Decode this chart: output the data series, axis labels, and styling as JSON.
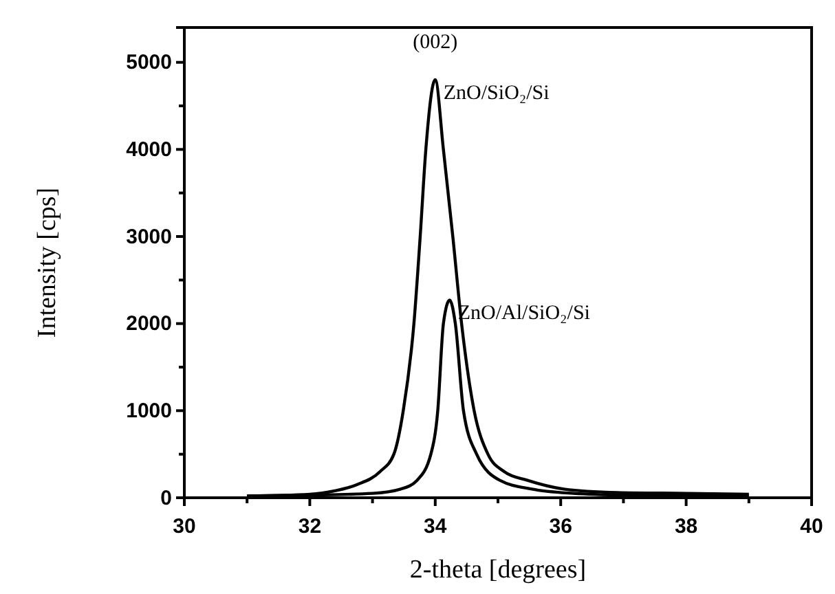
{
  "chart_data": {
    "type": "line",
    "xlabel": "2-theta [degrees]",
    "ylabel": "Intensity [cps]",
    "xlim": [
      30,
      40
    ],
    "xticks": [
      30,
      {
        "value": 31,
        "label": null
      },
      32,
      {
        "value": 33,
        "label": null
      },
      34,
      {
        "value": 35,
        "label": null
      },
      36,
      {
        "value": 37,
        "label": null
      },
      38,
      {
        "value": 39,
        "label": null
      },
      40
    ],
    "ylim": [
      0,
      5400
    ],
    "yticks": [
      0,
      {
        "value": 500,
        "label": null
      },
      1000,
      {
        "value": 1500,
        "label": null
      },
      2000,
      {
        "value": 2500,
        "label": null
      },
      3000,
      {
        "value": 3500,
        "label": null
      },
      4000,
      {
        "value": 4500,
        "label": null
      },
      5000
    ],
    "grid": false,
    "legend": false,
    "marker": "none",
    "line_style": "solid",
    "annotations": [
      "(002)"
    ],
    "series": [
      {
        "name": "ZnO/SiO₂/Si",
        "color": "#000000",
        "x": [
          31,
          32,
          32.4,
          32.75,
          33.12,
          33.34,
          33.49,
          33.66,
          33.76,
          33.85,
          34,
          34.13,
          34.28,
          34.42,
          34.62,
          34.84,
          35.1,
          35.47,
          36.05,
          36.9,
          38,
          39
        ],
        "values": [
          20,
          40,
          80,
          150,
          300,
          500,
          1000,
          2000,
          3000,
          4000,
          4800,
          4000,
          3000,
          2000,
          1000,
          500,
          300,
          200,
          100,
          60,
          50,
          40
        ]
      },
      {
        "name": "ZnO/Al/SiO₂/Si",
        "color": "#000000",
        "x": [
          31,
          32,
          33,
          33.45,
          33.71,
          33.93,
          34.04,
          34.13,
          34.23,
          34.32,
          34.45,
          34.66,
          35.03,
          35.54,
          36.2,
          37,
          39
        ],
        "values": [
          20,
          30,
          50,
          100,
          200,
          500,
          1000,
          2000,
          2270,
          2000,
          1000,
          500,
          200,
          100,
          50,
          30,
          20
        ]
      }
    ]
  }
}
